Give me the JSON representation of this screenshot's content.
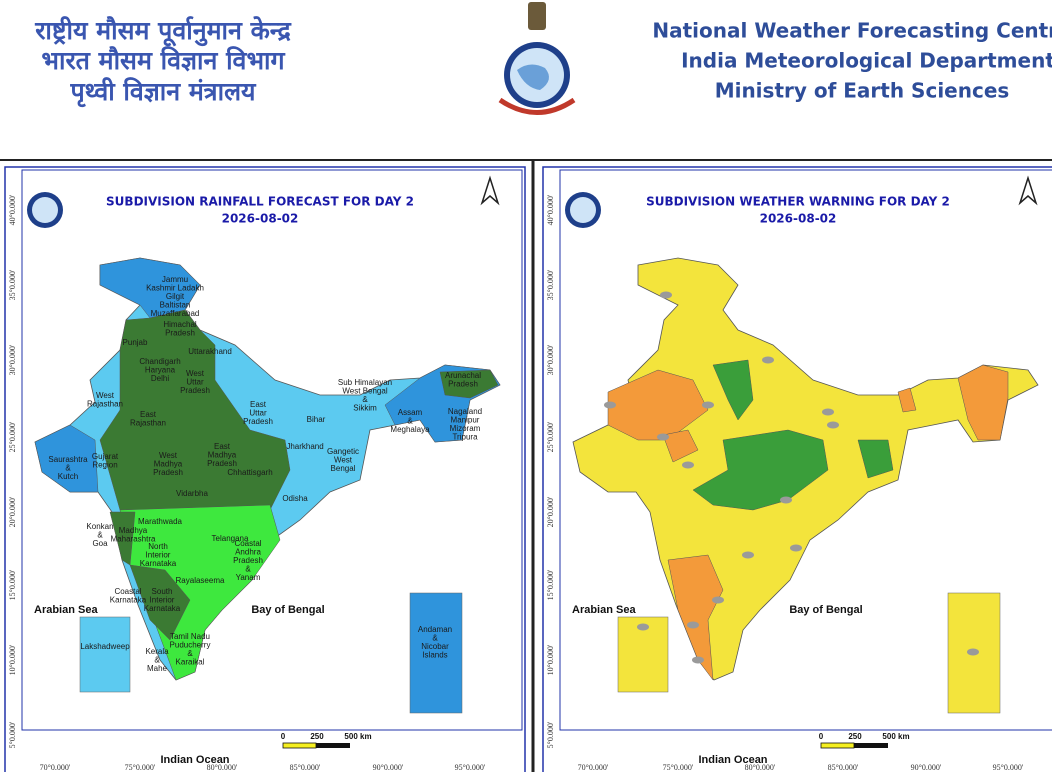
{
  "header": {
    "hindi_lines": [
      "राष्ट्रीय मौसम पूर्वानुमान केन्द्र",
      "भारत मौसम विज्ञान विभाग",
      "पृथ्वी विज्ञान मंत्रालय"
    ],
    "english_lines": [
      "National Weather Forecasting Centre",
      "India Meteorological Department",
      "Ministry of Earth Sciences"
    ]
  },
  "graticule": {
    "lat_labels": [
      "40°0.000'",
      "35°0.000'",
      "30°0.000'",
      "25°0.000'",
      "20°0.000'",
      "15°0.000'",
      "10°0.000'",
      "5°0.000'"
    ],
    "lon_labels": [
      "70°0.000'",
      "75°0.000'",
      "80°0.000'",
      "85°0.000'",
      "90°0.000'",
      "95°0.000'"
    ]
  },
  "panels": [
    {
      "title": "SUBDIVISION RAINFALL FORECAST FOR DAY 2",
      "date": "2026-08-02",
      "seas": [
        "Arabian Sea",
        "Bay of Bengal",
        "Indian Ocean"
      ],
      "scale": [
        "0",
        "250",
        "500 km"
      ],
      "regions": [
        {
          "lines": [
            "Jammu",
            "Kashmir Ladakh",
            "Gilgit",
            "Baltistan",
            "Muzaffarabad"
          ]
        },
        {
          "lines": [
            "Himachal",
            "Pradesh"
          ]
        },
        {
          "lines": [
            "Punjab"
          ]
        },
        {
          "lines": [
            "Uttarakhand"
          ]
        },
        {
          "lines": [
            "Chandigarh",
            "Haryana",
            "Delhi"
          ]
        },
        {
          "lines": [
            "West",
            "Uttar",
            "Pradesh"
          ]
        },
        {
          "lines": [
            "West",
            "Rajasthan"
          ]
        },
        {
          "lines": [
            "East",
            "Rajasthan"
          ]
        },
        {
          "lines": [
            "East",
            "Uttar",
            "Pradesh"
          ]
        },
        {
          "lines": [
            "Bihar"
          ]
        },
        {
          "lines": [
            "Sub Himalayan",
            "West Bengal",
            "&",
            "Sikkim"
          ]
        },
        {
          "lines": [
            "Assam",
            "&",
            "Meghalaya"
          ]
        },
        {
          "lines": [
            "Arunachal",
            "Pradesh"
          ]
        },
        {
          "lines": [
            "Nagaland",
            "Manipur",
            "Mizoram",
            "Tripura"
          ]
        },
        {
          "lines": [
            "Jharkhand"
          ]
        },
        {
          "lines": [
            "Gangetic",
            "West",
            "Bengal"
          ]
        },
        {
          "lines": [
            "West",
            "Madhya",
            "Pradesh"
          ]
        },
        {
          "lines": [
            "East",
            "Madhya",
            "Pradesh"
          ]
        },
        {
          "lines": [
            "Chhattisgarh"
          ]
        },
        {
          "lines": [
            "Saurashtra",
            "&",
            "Kutch"
          ]
        },
        {
          "lines": [
            "Gujarat",
            "Region"
          ]
        },
        {
          "lines": [
            "Vidarbha"
          ]
        },
        {
          "lines": [
            "Odisha"
          ]
        },
        {
          "lines": [
            "Marathwada"
          ]
        },
        {
          "lines": [
            "Konkan",
            "&",
            "Goa"
          ]
        },
        {
          "lines": [
            "Madhya",
            "Maharashtra"
          ]
        },
        {
          "lines": [
            "Telangana"
          ]
        },
        {
          "lines": [
            "North",
            "Interior",
            "Karnataka"
          ]
        },
        {
          "lines": [
            "Coastal",
            "Andhra",
            "Pradesh",
            "&",
            "Yanam"
          ]
        },
        {
          "lines": [
            "Rayalaseema"
          ]
        },
        {
          "lines": [
            "Coastal",
            "Karnataka"
          ]
        },
        {
          "lines": [
            "South",
            "Interior",
            "Karnataka"
          ]
        },
        {
          "lines": [
            "Tamil Nadu",
            "Puducherry",
            "&",
            "Karaikal"
          ]
        },
        {
          "lines": [
            "Kerala",
            "&",
            "Mahe"
          ]
        },
        {
          "lines": [
            "Lakshadweep"
          ]
        },
        {
          "lines": [
            "Andaman",
            "&",
            "Nicobar",
            "Islands"
          ]
        }
      ]
    },
    {
      "title": "SUBDIVISION WEATHER WARNING FOR DAY 2",
      "date": "2026-08-02",
      "seas": [
        "Arabian Sea",
        "Bay of Bengal",
        "Indian Ocean"
      ],
      "scale": [
        "0",
        "250",
        "500 km"
      ],
      "regions": []
    }
  ]
}
